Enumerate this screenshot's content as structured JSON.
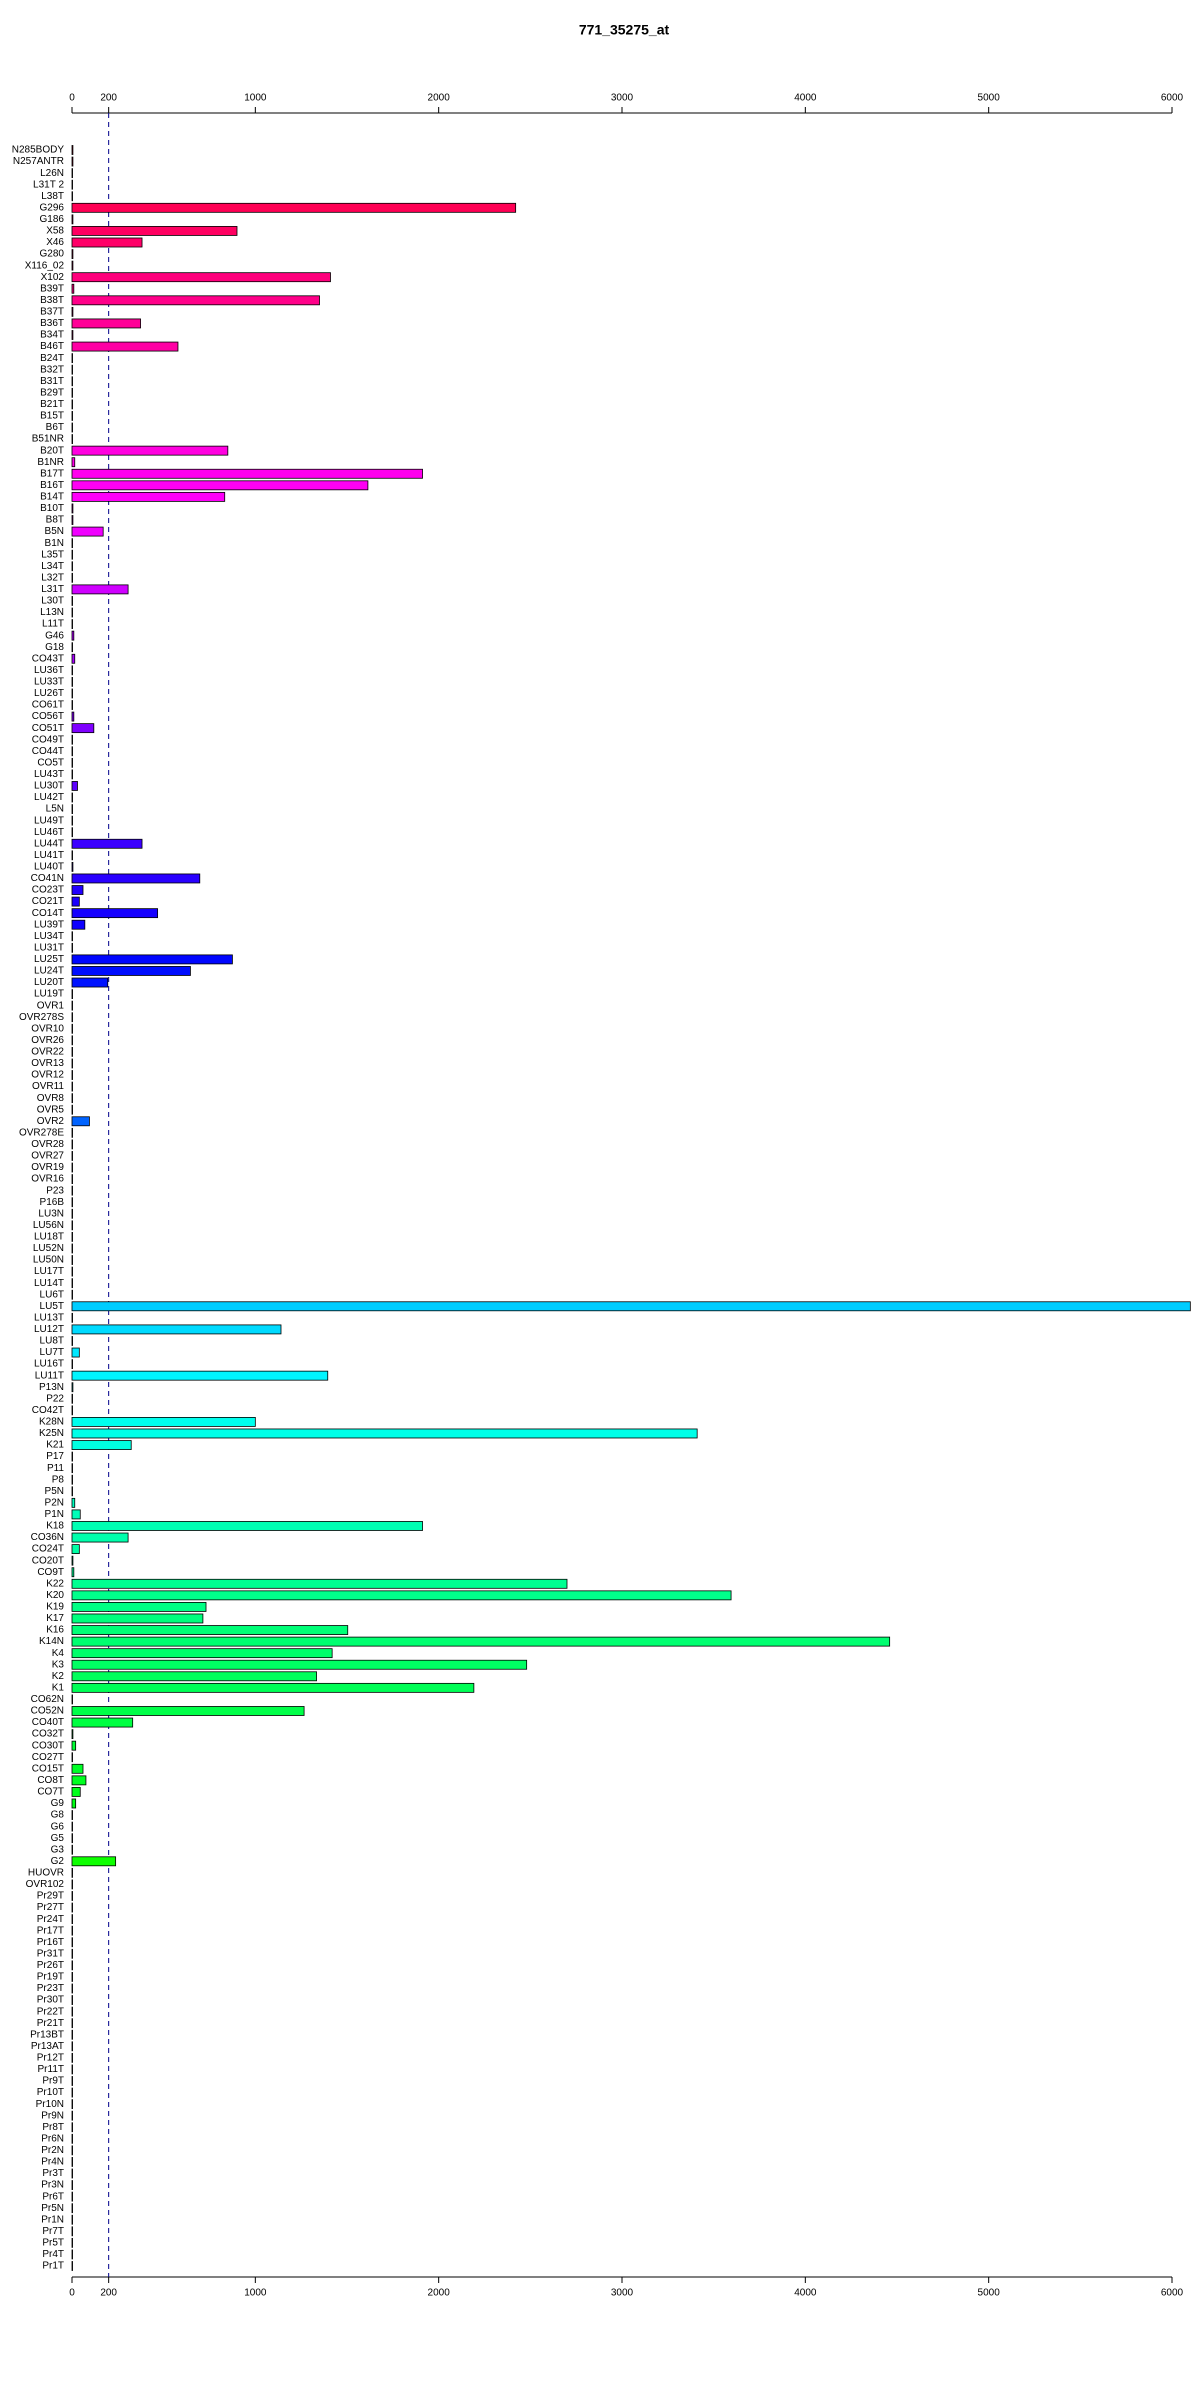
{
  "chart_data": {
    "type": "barh",
    "title": "771_35275_at",
    "categories": [
      "N285BODY",
      "N257ANTR",
      "L26N",
      "L31T 2",
      "L38T",
      "G296",
      "G186",
      "X58",
      "X46",
      "G280",
      "X116_02",
      "X102",
      "B39T",
      "B38T",
      "B37T",
      "B36T",
      "B34T",
      "B46T",
      "B24T",
      "B32T",
      "B31T",
      "B29T",
      "B21T",
      "B15T",
      "B6T",
      "B51NR",
      "B20T",
      "B1NR",
      "B17T",
      "B16T",
      "B14T",
      "B10T",
      "B8T",
      "B5N",
      "B1N",
      "L35T",
      "L34T",
      "L32T",
      "L31T",
      "L30T",
      "L13N",
      "L11T",
      "G46",
      "G18",
      "CO43T",
      "LU36T",
      "LU33T",
      "LU26T",
      "CO61T",
      "CO56T",
      "CO51T",
      "CO49T",
      "CO44T",
      "CO5T",
      "LU43T",
      "LU30T",
      "LU42T",
      "L5N",
      "LU49T",
      "LU46T",
      "LU44T",
      "LU41T",
      "LU40T",
      "CO41N",
      "CO23T",
      "CO21T",
      "CO14T",
      "LU39T",
      "LU34T",
      "LU31T",
      "LU25T",
      "LU24T",
      "LU20T",
      "LU19T",
      "OVR1",
      "OVR278S",
      "OVR10",
      "OVR26",
      "OVR22",
      "OVR13",
      "OVR12",
      "OVR11",
      "OVR8",
      "OVR5",
      "OVR2",
      "OVR278E",
      "OVR28",
      "OVR27",
      "OVR19",
      "OVR16",
      "P23",
      "P16B",
      "LU3N",
      "LU56N",
      "LU18T",
      "LU52N",
      "LU50N",
      "LU17T",
      "LU14T",
      "LU6T",
      "LU5T",
      "LU13T",
      "LU12T",
      "LU8T",
      "LU7T",
      "LU16T",
      "LU11T",
      "P13N",
      "P22",
      "CO42T",
      "K28N",
      "K25N",
      "K21",
      "P17",
      "P11",
      "P8",
      "P5N",
      "P2N",
      "P1N",
      "K18",
      "CO36N",
      "CO24T",
      "CO20T",
      "CO9T",
      "K22",
      "K20",
      "K19",
      "K17",
      "K16",
      "K14N",
      "K4",
      "K3",
      "K2",
      "K1",
      "CO62N",
      "CO52N",
      "CO40T",
      "CO32T",
      "CO30T",
      "CO27T",
      "CO15T",
      "CO8T",
      "CO7T",
      "G9",
      "G8",
      "G6",
      "G5",
      "G3",
      "G2",
      "HUOVR",
      "OVR102",
      "Pr29T",
      "Pr27T",
      "Pr24T",
      "Pr17T",
      "Pr16T",
      "Pr31T",
      "Pr26T",
      "Pr19T",
      "Pr23T",
      "Pr30T",
      "Pr22T",
      "Pr21T",
      "Pr13BT",
      "Pr13AT",
      "Pr12T",
      "Pr11T",
      "Pr9T",
      "Pr10T",
      "Pr10N",
      "Pr9N",
      "Pr8T",
      "Pr6N",
      "Pr2N",
      "Pr4N",
      "Pr3T",
      "Pr3N",
      "Pr6T",
      "Pr5N",
      "Pr1N",
      "Pr7T",
      "Pr5T",
      "Pr4T",
      "Pr1T"
    ],
    "values": [
      5,
      5,
      3,
      3,
      3,
      2420,
      5,
      900,
      382,
      5,
      5,
      1410,
      10,
      1350,
      5,
      374,
      5,
      578,
      3,
      3,
      3,
      3,
      3,
      3,
      3,
      3,
      850,
      15,
      1912,
      1614,
      833,
      5,
      5,
      170,
      3,
      3,
      3,
      3,
      306,
      3,
      3,
      3,
      10,
      3,
      15,
      3,
      3,
      3,
      3,
      10,
      119,
      3,
      3,
      3,
      3,
      30,
      3,
      3,
      3,
      3,
      382,
      3,
      5,
      697,
      60,
      40,
      467,
      70,
      3,
      3,
      875,
      646,
      195,
      3,
      3,
      3,
      3,
      3,
      3,
      3,
      3,
      3,
      3,
      3,
      95,
      3,
      3,
      3,
      3,
      3,
      3,
      3,
      3,
      3,
      3,
      3,
      3,
      3,
      3,
      3,
      6100,
      3,
      1140,
      3,
      40,
      3,
      1395,
      5,
      3,
      3,
      1000,
      3410,
      323,
      3,
      3,
      3,
      3,
      15,
      45,
      1912,
      306,
      40,
      5,
      10,
      2700,
      3595,
      731,
      714,
      1504,
      4460,
      1419,
      2480,
      1334,
      2192,
      3,
      1266,
      331,
      5,
      20,
      3,
      60,
      76,
      45,
      20,
      3,
      3,
      3,
      3,
      238,
      3,
      3,
      3,
      3,
      3,
      3,
      3,
      3,
      3,
      3,
      3,
      3,
      3,
      3,
      3,
      3,
      3,
      3,
      3,
      3,
      3,
      3,
      3,
      3,
      3,
      3,
      3,
      3,
      3,
      3,
      3,
      3,
      3,
      3,
      3
    ],
    "color_hues": [
      348,
      62
    ],
    "xlim": [
      0,
      6000
    ],
    "xticks": [
      0,
      200,
      1000,
      2000,
      3000,
      4000,
      5000,
      6000
    ],
    "reference_line": 200
  }
}
